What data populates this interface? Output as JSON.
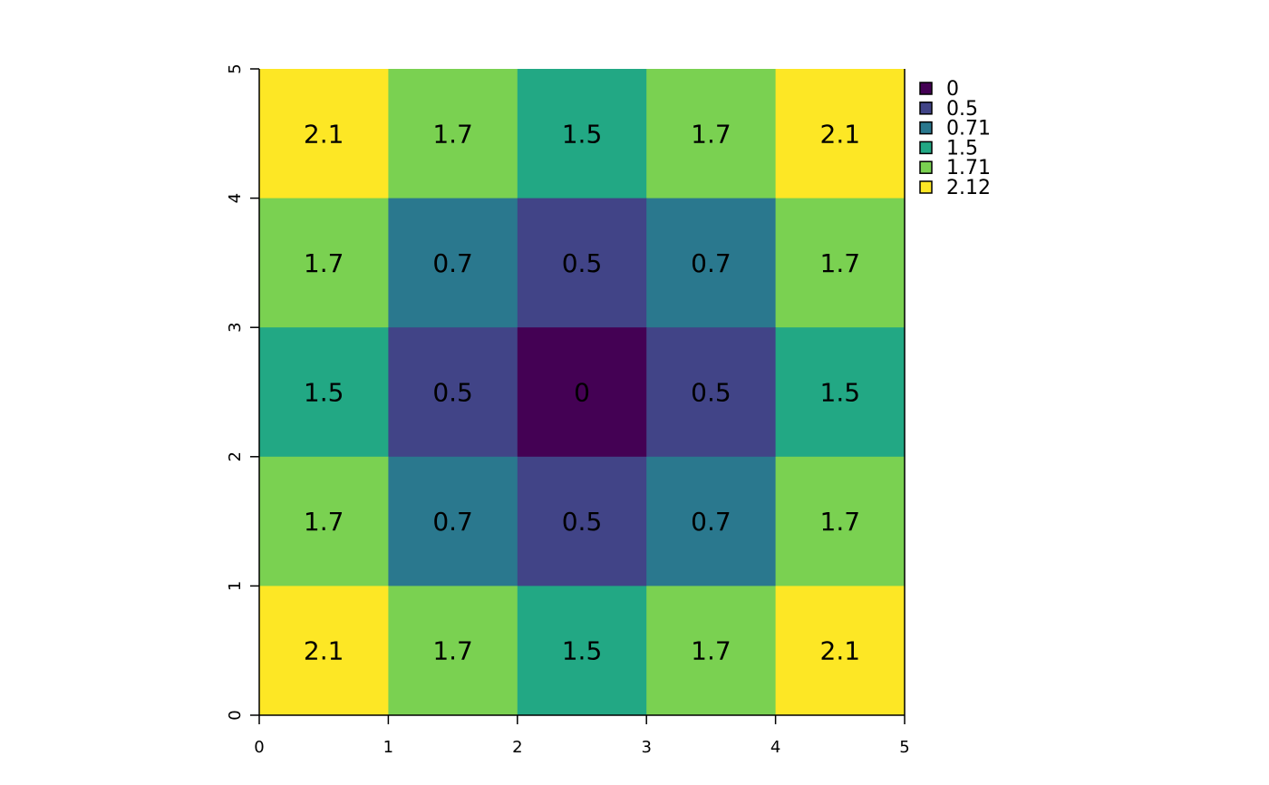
{
  "chart_data": {
    "type": "heatmap",
    "title": "",
    "xlabel": "",
    "ylabel": "",
    "xlim": [
      0,
      5
    ],
    "ylim": [
      0,
      5
    ],
    "x_ticks": [
      "0",
      "1",
      "2",
      "3",
      "4",
      "5"
    ],
    "y_ticks": [
      "0",
      "1",
      "2",
      "3",
      "4",
      "5"
    ],
    "grid": false,
    "legend_position": "top-right",
    "cells": [
      [
        "2.1",
        "1.7",
        "1.5",
        "1.7",
        "2.1"
      ],
      [
        "1.7",
        "0.7",
        "0.5",
        "0.7",
        "1.7"
      ],
      [
        "1.5",
        "0.5",
        "0",
        "0.5",
        "1.5"
      ],
      [
        "1.7",
        "0.7",
        "0.5",
        "0.7",
        "1.7"
      ],
      [
        "2.1",
        "1.7",
        "1.5",
        "1.7",
        "2.1"
      ]
    ],
    "cell_classes": [
      [
        5,
        4,
        3,
        4,
        5
      ],
      [
        4,
        2,
        1,
        2,
        4
      ],
      [
        3,
        1,
        0,
        1,
        3
      ],
      [
        4,
        2,
        1,
        2,
        4
      ],
      [
        5,
        4,
        3,
        4,
        5
      ]
    ],
    "legend": [
      {
        "label": "0",
        "color": "#440154"
      },
      {
        "label": "0.5",
        "color": "#414487"
      },
      {
        "label": "0.71",
        "color": "#2A788E"
      },
      {
        "label": "1.5",
        "color": "#22A884"
      },
      {
        "label": "1.71",
        "color": "#7AD151"
      },
      {
        "label": "2.12",
        "color": "#FDE725"
      }
    ]
  }
}
